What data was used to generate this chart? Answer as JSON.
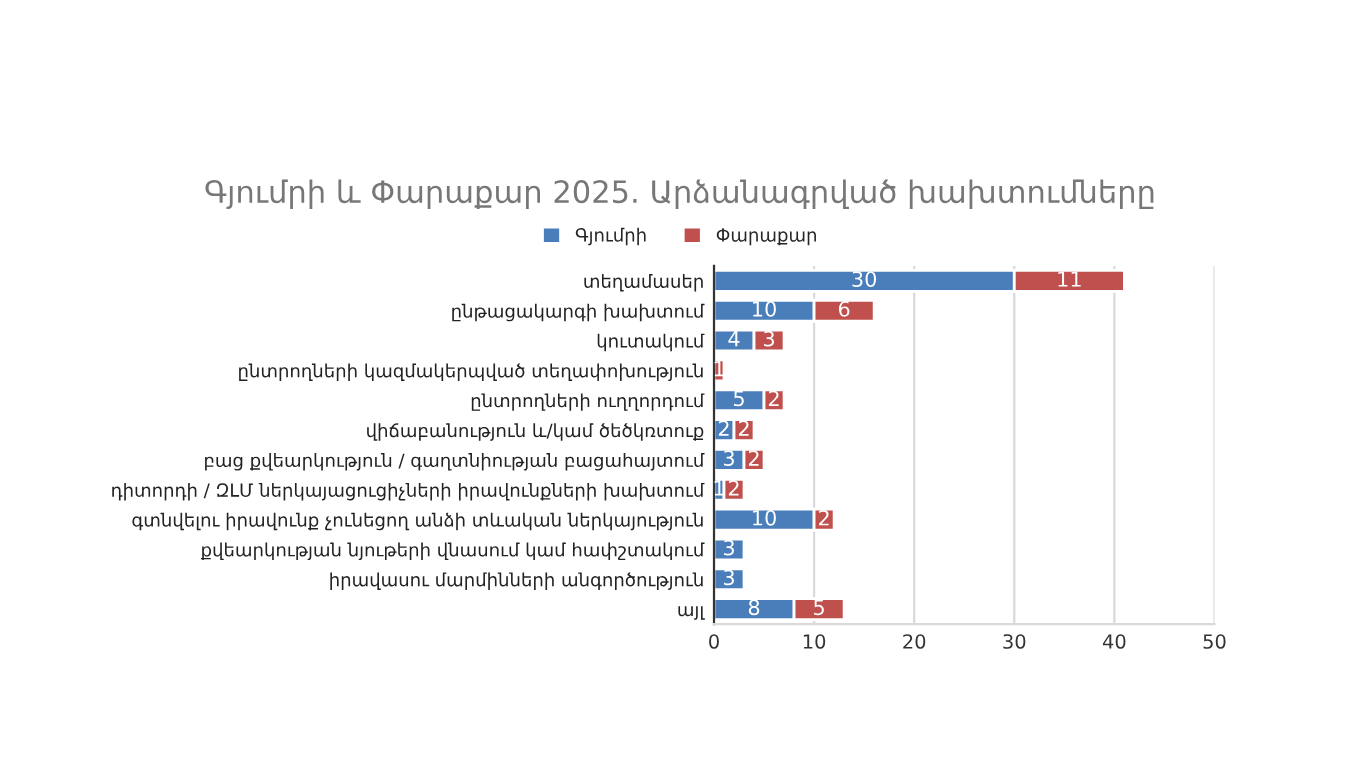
{
  "chart_data": {
    "type": "bar",
    "orientation": "horizontal",
    "stacked": true,
    "title": "Գյումրի և Փարաքար 2025. Արձանագրված խախտումները",
    "categories": [
      "տեղամասեր",
      "ընթացակարգի խախտում",
      "կուտակում",
      "ընտրողների կազմակերպված տեղափոխություն",
      "ընտրողների ուղղորդում",
      "վիճաբանություն և/կամ ծեծկռտուք",
      "բաց քվեարկություն / գաղտնիության բացահայտում",
      "դիտորդի / ԶԼՄ ներկայացուցիչների իրավունքների խախտում",
      "գտնվելու իրավունք չունեցող անձի տևական ներկայություն",
      "քվեարկության նյութերի վնասում կամ հափշտակում",
      "իրավասու մարմինների անգործություն",
      "այլ"
    ],
    "series": [
      {
        "name": "Գյումրի",
        "color": "#4a7ebb",
        "values": [
          30,
          10,
          4,
          null,
          5,
          2,
          3,
          1,
          10,
          3,
          3,
          8
        ]
      },
      {
        "name": "Փարաքար",
        "color": "#c0504d",
        "values": [
          11,
          6,
          3,
          1,
          2,
          2,
          2,
          2,
          2,
          null,
          null,
          5
        ]
      }
    ],
    "xlim": [
      0,
      50
    ],
    "xticks": [
      0,
      10,
      20,
      30,
      40,
      50
    ],
    "grid": "x",
    "legend": "top",
    "data_labels": true
  }
}
